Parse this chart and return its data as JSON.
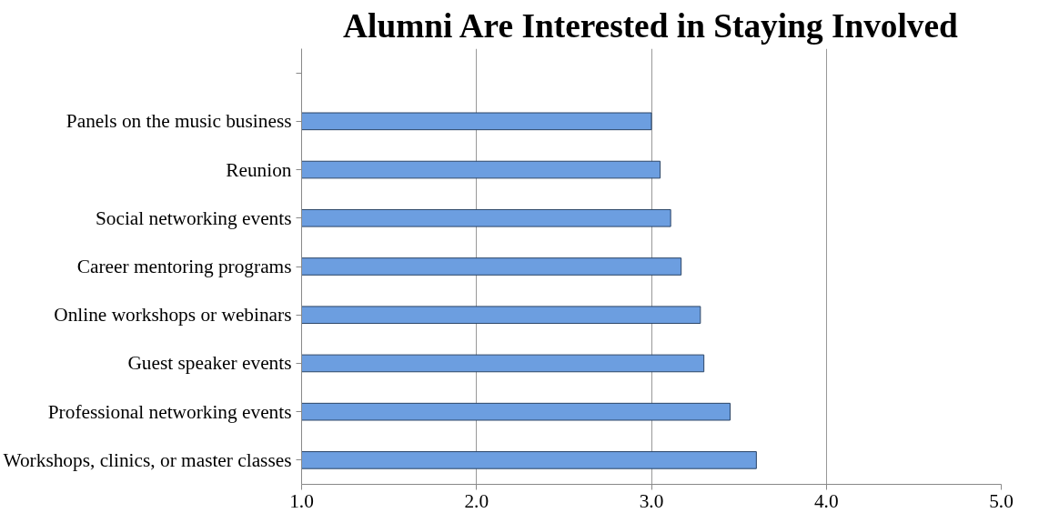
{
  "chart_data": {
    "type": "bar",
    "orientation": "horizontal",
    "title": "Alumni Are Interested in Staying Involved",
    "categories": [
      null,
      "Panels on the music business",
      "Reunion",
      "Social networking events",
      "Career mentoring programs",
      "Online workshops or webinars",
      "Guest speaker events",
      "Professional networking events",
      "Workshops, clinics, or master classes"
    ],
    "values": [
      null,
      3.0,
      3.05,
      3.11,
      3.17,
      3.28,
      3.3,
      3.45,
      3.6
    ],
    "color": "#6c9ee0",
    "xlim": [
      1.0,
      5.0
    ],
    "xticks": [
      {
        "value": 1,
        "label": "1.0"
      },
      {
        "value": 2,
        "label": "2.0"
      },
      {
        "value": 3,
        "label": "3.0"
      },
      {
        "value": 4,
        "label": "4.0"
      },
      {
        "value": 5,
        "label": "5.0"
      }
    ],
    "grid": "x"
  }
}
